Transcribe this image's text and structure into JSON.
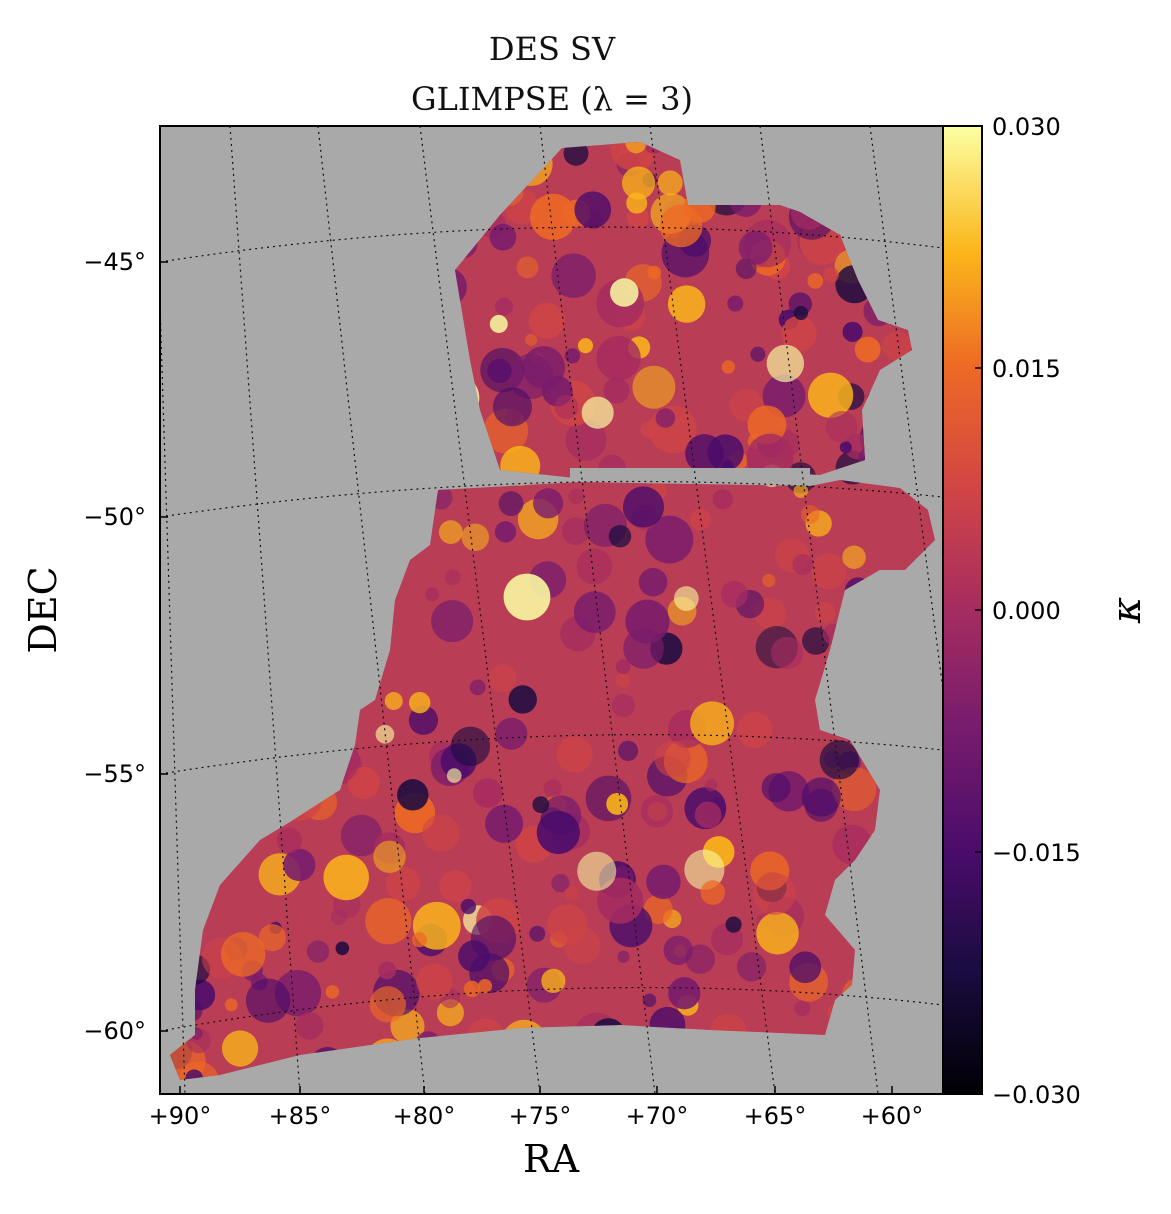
{
  "chart_data": {
    "type": "heatmap",
    "title": "DES SV",
    "subtitle": "GLIMPSE  (λ = 3)",
    "xlabel": "RA",
    "ylabel": "DEC",
    "x_ticks": [
      "+90°",
      "+85°",
      "+80°",
      "+75°",
      "+70°",
      "+65°",
      "+60°"
    ],
    "y_ticks": [
      "−45°",
      "−50°",
      "−55°",
      "−60°"
    ],
    "colorbar": {
      "label": "κ",
      "ticks": [
        "0.030",
        "0.015",
        "0.000",
        "−0.015",
        "−0.030"
      ],
      "range": [
        -0.03,
        0.03
      ],
      "colormap": "inferno"
    },
    "background_color": "#a9a9a9",
    "grid": true,
    "ra_range_deg": [
      58,
      91
    ],
    "dec_range_deg": [
      -61.5,
      -42
    ]
  }
}
